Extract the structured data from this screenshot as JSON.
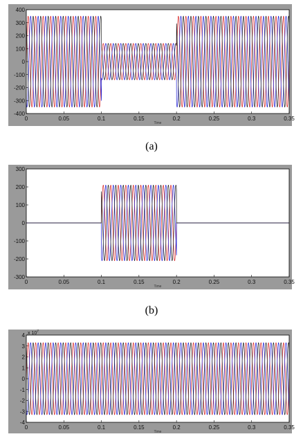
{
  "colors": {
    "panel_bg": "#9a9a9a",
    "plot_bg": "#ffffff",
    "phase_colors": [
      "#d62020",
      "#1a1ad0",
      "#1a1a1a"
    ]
  },
  "chart_data": [
    {
      "type": "line",
      "caption": "(a)",
      "xlabel": "Time",
      "ylabel": "",
      "xlim": [
        0,
        0.35
      ],
      "ylim": [
        -400,
        400
      ],
      "xticks": [
        "0",
        "0.05",
        "0.1",
        "0.15",
        "0.2",
        "0.25",
        "0.3",
        "0.35"
      ],
      "yticks": [
        "400",
        "300",
        "200",
        "100",
        "0",
        "-100",
        "-200",
        "-300",
        "-400"
      ],
      "frequency_hz": 100,
      "phases": 3,
      "amplitude_segments": [
        {
          "t_start": 0,
          "t_end": 0.1,
          "amplitude": 350
        },
        {
          "t_start": 0.1,
          "t_end": 0.2,
          "amplitude": 140
        },
        {
          "t_start": 0.2,
          "t_end": 0.35,
          "amplitude": 350
        }
      ],
      "multiplier": ""
    },
    {
      "type": "line",
      "caption": "(b)",
      "xlabel": "Time",
      "ylabel": "",
      "xlim": [
        0,
        0.35
      ],
      "ylim": [
        -300,
        300
      ],
      "xticks": [
        "0",
        "0.05",
        "0.1",
        "0.15",
        "0.2",
        "0.25",
        "0.3",
        "0.35"
      ],
      "yticks": [
        "300",
        "200",
        "100",
        "0",
        "-100",
        "-200",
        "-300"
      ],
      "frequency_hz": 100,
      "phases": 3,
      "amplitude_segments": [
        {
          "t_start": 0,
          "t_end": 0.1,
          "amplitude": 0
        },
        {
          "t_start": 0.1,
          "t_end": 0.2,
          "amplitude": 210
        },
        {
          "t_start": 0.2,
          "t_end": 0.35,
          "amplitude": 0
        }
      ],
      "multiplier": ""
    },
    {
      "type": "line",
      "caption": "",
      "xlabel": "Time",
      "ylabel": "",
      "xlim": [
        0,
        0.35
      ],
      "ylim": [
        -4,
        4
      ],
      "xticks": [
        "0",
        "0.05",
        "0.1",
        "0.15",
        "0.2",
        "0.25",
        "0.3",
        "0.35"
      ],
      "yticks": [
        "4",
        "3",
        "2",
        "1",
        "0",
        "-1",
        "-2",
        "-3",
        "-4"
      ],
      "frequency_hz": 100,
      "phases": 3,
      "amplitude_segments": [
        {
          "t_start": 0,
          "t_end": 0.35,
          "amplitude": 3.3
        }
      ],
      "multiplier": "x 10^7"
    }
  ]
}
